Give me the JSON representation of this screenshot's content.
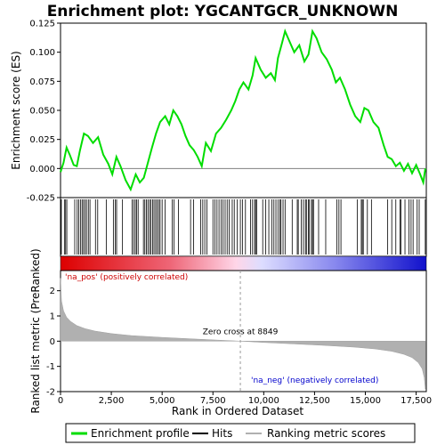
{
  "chart_data": {
    "type": "line",
    "title": "Enrichment plot: YGCANTGCR_UNKNOWN",
    "xlabel": "Rank in Ordered Dataset",
    "x_range": [
      0,
      18000
    ],
    "x_ticks": [
      {
        "value": 0,
        "label": "0"
      },
      {
        "value": 2500,
        "label": "2,500"
      },
      {
        "value": 5000,
        "label": "5,000"
      },
      {
        "value": 7500,
        "label": "7,500"
      },
      {
        "value": 10000,
        "label": "10,000"
      },
      {
        "value": 12500,
        "label": "12,500"
      },
      {
        "value": 15000,
        "label": "15,000"
      },
      {
        "value": 17500,
        "label": "17,500"
      }
    ],
    "es_panel": {
      "ylabel": "Enrichment score (ES)",
      "ylim": [
        -0.025,
        0.125
      ],
      "y_ticks": [
        {
          "value": -0.025,
          "label": "-0.025"
        },
        {
          "value": 0.0,
          "label": "0.000"
        },
        {
          "value": 0.025,
          "label": "0.025"
        },
        {
          "value": 0.05,
          "label": "0.050"
        },
        {
          "value": 0.075,
          "label": "0.075"
        },
        {
          "value": 0.1,
          "label": "0.100"
        },
        {
          "value": 0.125,
          "label": "0.125"
        }
      ],
      "series": {
        "name": "Enrichment profile",
        "color": "#00dd00",
        "points": [
          [
            0,
            -0.003
          ],
          [
            150,
            0.005
          ],
          [
            300,
            0.018
          ],
          [
            450,
            0.012
          ],
          [
            650,
            0.003
          ],
          [
            800,
            0.002
          ],
          [
            950,
            0.015
          ],
          [
            1150,
            0.03
          ],
          [
            1350,
            0.028
          ],
          [
            1600,
            0.022
          ],
          [
            1850,
            0.027
          ],
          [
            2100,
            0.012
          ],
          [
            2350,
            0.004
          ],
          [
            2550,
            -0.005
          ],
          [
            2750,
            0.01
          ],
          [
            2950,
            0.002
          ],
          [
            3200,
            -0.01
          ],
          [
            3450,
            -0.018
          ],
          [
            3700,
            -0.005
          ],
          [
            3900,
            -0.012
          ],
          [
            4100,
            -0.008
          ],
          [
            4300,
            0.005
          ],
          [
            4500,
            0.018
          ],
          [
            4700,
            0.03
          ],
          [
            4900,
            0.04
          ],
          [
            5150,
            0.045
          ],
          [
            5350,
            0.038
          ],
          [
            5550,
            0.05
          ],
          [
            5750,
            0.045
          ],
          [
            5950,
            0.038
          ],
          [
            6150,
            0.028
          ],
          [
            6350,
            0.02
          ],
          [
            6550,
            0.016
          ],
          [
            6750,
            0.01
          ],
          [
            6950,
            0.002
          ],
          [
            7150,
            0.022
          ],
          [
            7400,
            0.015
          ],
          [
            7650,
            0.03
          ],
          [
            7900,
            0.035
          ],
          [
            8150,
            0.042
          ],
          [
            8400,
            0.05
          ],
          [
            8600,
            0.058
          ],
          [
            8800,
            0.068
          ],
          [
            9000,
            0.074
          ],
          [
            9250,
            0.068
          ],
          [
            9450,
            0.08
          ],
          [
            9600,
            0.095
          ],
          [
            9850,
            0.085
          ],
          [
            10100,
            0.078
          ],
          [
            10350,
            0.082
          ],
          [
            10550,
            0.076
          ],
          [
            10700,
            0.095
          ],
          [
            10900,
            0.108
          ],
          [
            11050,
            0.118
          ],
          [
            11250,
            0.11
          ],
          [
            11500,
            0.1
          ],
          [
            11750,
            0.106
          ],
          [
            12000,
            0.092
          ],
          [
            12200,
            0.098
          ],
          [
            12400,
            0.118
          ],
          [
            12600,
            0.112
          ],
          [
            12850,
            0.1
          ],
          [
            13100,
            0.094
          ],
          [
            13350,
            0.085
          ],
          [
            13550,
            0.074
          ],
          [
            13750,
            0.078
          ],
          [
            14000,
            0.068
          ],
          [
            14250,
            0.055
          ],
          [
            14500,
            0.045
          ],
          [
            14750,
            0.04
          ],
          [
            14950,
            0.052
          ],
          [
            15150,
            0.05
          ],
          [
            15400,
            0.04
          ],
          [
            15650,
            0.035
          ],
          [
            15900,
            0.02
          ],
          [
            16100,
            0.01
          ],
          [
            16300,
            0.008
          ],
          [
            16500,
            0.002
          ],
          [
            16700,
            0.005
          ],
          [
            16900,
            -0.002
          ],
          [
            17100,
            0.004
          ],
          [
            17300,
            -0.004
          ],
          [
            17500,
            0.003
          ],
          [
            17700,
            -0.005
          ],
          [
            17850,
            -0.012
          ],
          [
            17950,
            0.0
          ]
        ]
      }
    },
    "hits_panel": {
      "name": "Hits",
      "positions": [
        40,
        190,
        250,
        310,
        700,
        820,
        900,
        980,
        1060,
        1130,
        1210,
        1280,
        1370,
        1450,
        1720,
        1830,
        2250,
        2600,
        2700,
        2760,
        3050,
        3520,
        3600,
        3680,
        3750,
        3820,
        4080,
        4150,
        4230,
        4300,
        4380,
        4450,
        4530,
        4600,
        4680,
        4750,
        4830,
        4900,
        5000,
        5150,
        5500,
        5580,
        5800,
        6400,
        6550,
        6900,
        7000,
        7100,
        7200,
        7500,
        7600,
        7700,
        7800,
        7900,
        8000,
        8100,
        8200,
        8300,
        8450,
        8550,
        8700,
        8850,
        8950,
        9100,
        9350,
        9450,
        9550,
        9600,
        9650,
        9950,
        10100,
        10250,
        10400,
        10500,
        10600,
        10700,
        10800,
        10850,
        10950,
        11050,
        11400,
        11650,
        11700,
        11850,
        11950,
        12050,
        12100,
        12200,
        12250,
        12350,
        12400,
        12450,
        12700,
        13050,
        13600,
        13700,
        13800,
        14600,
        14800,
        14850,
        14900,
        15100,
        15300,
        16100,
        16300,
        16500,
        16700,
        16750,
        16950,
        17150,
        17250,
        17350,
        17550,
        17650,
        17950
      ]
    },
    "metric_panel": {
      "ylabel": "Ranked list metric (PreRanked)",
      "ylim": [
        -2.0,
        2.8
      ],
      "y_ticks": [
        {
          "value": -2,
          "label": "-2"
        },
        {
          "value": -1,
          "label": "-1"
        },
        {
          "value": 0,
          "label": "0"
        },
        {
          "value": 1,
          "label": "1"
        },
        {
          "value": 2,
          "label": "2"
        }
      ],
      "series": {
        "name": "Ranking metric scores",
        "color": "#b0b0b0",
        "points": [
          [
            0,
            2.5
          ],
          [
            50,
            1.6
          ],
          [
            150,
            1.2
          ],
          [
            300,
            0.95
          ],
          [
            500,
            0.78
          ],
          [
            800,
            0.62
          ],
          [
            1200,
            0.5
          ],
          [
            1700,
            0.4
          ],
          [
            2500,
            0.3
          ],
          [
            3500,
            0.22
          ],
          [
            5000,
            0.15
          ],
          [
            6500,
            0.09
          ],
          [
            7800,
            0.04
          ],
          [
            8849,
            0.0
          ],
          [
            10000,
            -0.05
          ],
          [
            11500,
            -0.11
          ],
          [
            13000,
            -0.17
          ],
          [
            14500,
            -0.24
          ],
          [
            15500,
            -0.31
          ],
          [
            16300,
            -0.4
          ],
          [
            16900,
            -0.52
          ],
          [
            17300,
            -0.65
          ],
          [
            17600,
            -0.85
          ],
          [
            17800,
            -1.1
          ],
          [
            17900,
            -1.45
          ],
          [
            17950,
            -1.9
          ]
        ]
      },
      "zero_cross": 8849,
      "zero_cross_label": "Zero cross at 8849",
      "pos_label": "'na_pos' (positively correlated)",
      "neg_label": "'na_neg' (negatively correlated)",
      "pos_color": "#cc0000",
      "neg_color": "#0000cc"
    },
    "legend": [
      {
        "label": "Enrichment profile",
        "color": "#00dd00"
      },
      {
        "label": "Hits",
        "color": "#000000"
      },
      {
        "label": "Ranking metric scores",
        "color": "#b0b0b0"
      }
    ]
  }
}
